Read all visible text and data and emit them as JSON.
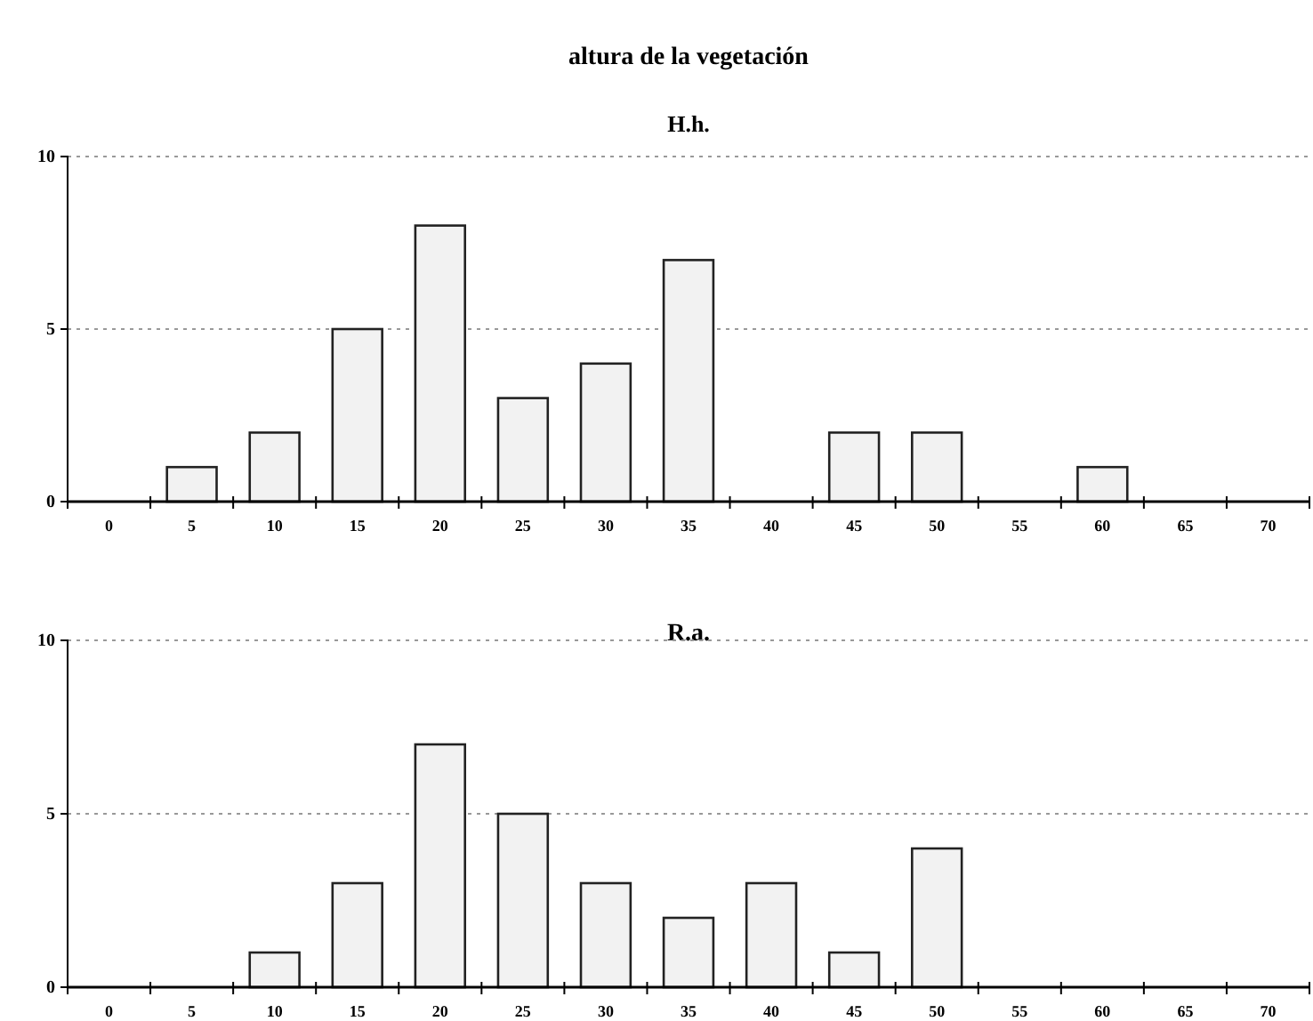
{
  "chart_data": [
    {
      "type": "bar",
      "title": "altura de la vegetación",
      "subtitle": "H.h.",
      "categories": [
        "0",
        "5",
        "10",
        "15",
        "20",
        "25",
        "30",
        "35",
        "40",
        "45",
        "50",
        "55",
        "60",
        "65",
        "70"
      ],
      "series": [
        {
          "color": "#f2f2f2",
          "values": [
            0,
            1,
            2,
            5,
            8,
            3,
            4,
            7,
            0,
            2,
            2,
            0,
            1,
            0,
            0
          ]
        }
      ],
      "ylim": [
        0,
        10
      ],
      "yticks": [
        0,
        5,
        10
      ],
      "grid": "y"
    },
    {
      "type": "bar",
      "title": "R.a.",
      "categories": [
        "0",
        "5",
        "10",
        "15",
        "20",
        "25",
        "30",
        "35",
        "40",
        "45",
        "50",
        "55",
        "60",
        "65",
        "70"
      ],
      "series": [
        {
          "color": "#f2f2f2",
          "values": [
            0,
            0,
            1,
            3,
            7,
            5,
            3,
            2,
            3,
            1,
            4,
            0,
            0,
            0,
            0
          ]
        }
      ],
      "ylim": [
        0,
        10
      ],
      "yticks": [
        0,
        5,
        10
      ],
      "grid": "y"
    }
  ]
}
